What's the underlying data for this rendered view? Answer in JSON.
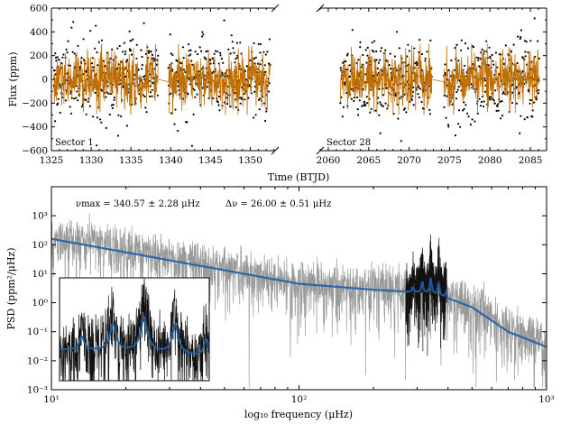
{
  "chart_data": [
    {
      "type": "scatter",
      "panel": "top-left",
      "annotation": "Sector 1",
      "ylabel": "Flux (ppm)",
      "ylim": [
        -600,
        600
      ],
      "yticks": [
        "600",
        "400",
        "200",
        "0",
        "−200",
        "−400",
        "−600"
      ],
      "xlim": [
        1325,
        1353
      ],
      "xticks": [
        "1325",
        "1330",
        "1335",
        "1340",
        "1345",
        "1350"
      ],
      "segments": [
        [
          1325.3,
          1338.4
        ],
        [
          1339.7,
          1352.5
        ]
      ],
      "series": [
        {
          "name": "",
          "color": "#000000",
          "style": "points",
          "scatter_ppm": 160
        },
        {
          "name": "",
          "color": "#c06e00",
          "style": "line",
          "scatter_ppm": 120
        }
      ]
    },
    {
      "type": "scatter",
      "panel": "top-right",
      "annotation": "Sector 28",
      "xlim": [
        2059,
        2087
      ],
      "xticks": [
        "2060",
        "2065",
        "2070",
        "2075",
        "2080",
        "2085"
      ],
      "segments": [
        [
          2061.5,
          2072.8
        ],
        [
          2074.3,
          2086.1
        ]
      ],
      "series": [
        {
          "name": "",
          "color": "#000000",
          "style": "points",
          "scatter_ppm": 160
        },
        {
          "name": "",
          "color": "#c06e00",
          "style": "line",
          "scatter_ppm": 120
        }
      ]
    },
    {
      "type": "line",
      "panel": "bottom",
      "xlabel": "log₁₀ frequency (μHz)",
      "ylabel": "PSD (ppm²/μHz)",
      "xscale": "log",
      "yscale": "log",
      "xlim": [
        10,
        1000
      ],
      "ylim": [
        0.001,
        10000
      ],
      "xticks": [
        "10¹",
        "10²",
        "10³"
      ],
      "yticks": [
        "10³",
        "10²",
        "10¹",
        "10⁰",
        "10⁻¹",
        "10⁻²",
        "10⁻³"
      ],
      "annotations": [
        "νmax = 340.57 ± 2.28 μHz",
        "Δν = 26.00 ± 0.51 μHz"
      ],
      "numax": 340.57,
      "delta_nu": 26.0,
      "series": [
        {
          "name": "",
          "color": "#999999",
          "style": "line"
        },
        {
          "name": "",
          "color": "#111111",
          "style": "line",
          "xrange": [
            270,
            395
          ]
        },
        {
          "name": "",
          "color": "#1f5fa8",
          "style": "fit",
          "x": [
            10,
            100,
            200,
            300,
            340,
            380,
            500,
            700,
            1000
          ],
          "y": [
            160,
            4.5,
            2.8,
            2.3,
            2.2,
            1.7,
            0.7,
            0.1,
            0.03
          ]
        }
      ],
      "inset": {
        "xrange": [
          270,
          395
        ],
        "color": "#111111",
        "fit_color": "#1f5fa8"
      }
    }
  ],
  "shared_xlabel_top": "Time (BTJD)"
}
